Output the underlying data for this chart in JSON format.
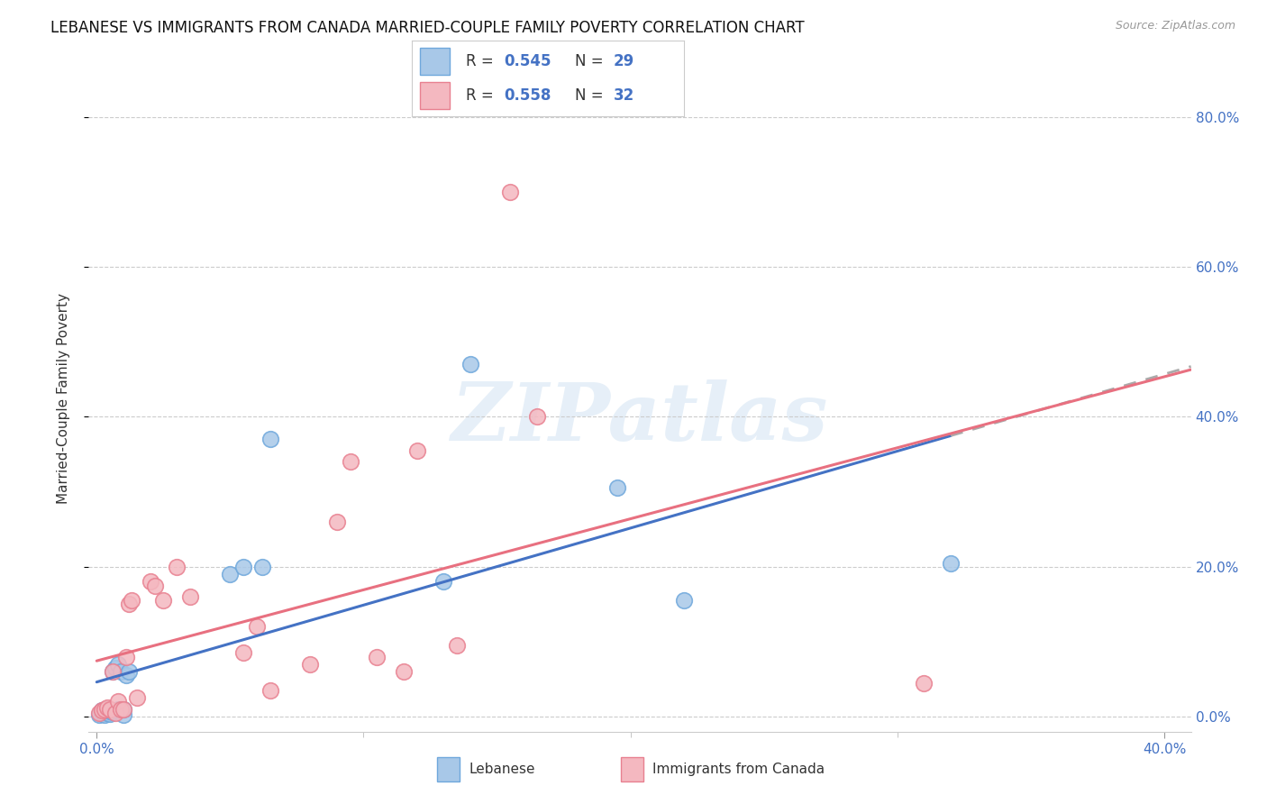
{
  "title": "LEBANESE VS IMMIGRANTS FROM CANADA MARRIED-COUPLE FAMILY POVERTY CORRELATION CHART",
  "source": "Source: ZipAtlas.com",
  "ylabel": "Married-Couple Family Poverty",
  "xlim": [
    -0.003,
    0.41
  ],
  "ylim": [
    -0.02,
    0.87
  ],
  "xtick_positions": [
    0.0,
    0.4
  ],
  "xtick_labels": [
    "0.0%",
    "40.0%"
  ],
  "yticks_right": [
    0.0,
    0.2,
    0.4,
    0.6,
    0.8
  ],
  "lebanese_x": [
    0.001,
    0.002,
    0.002,
    0.003,
    0.003,
    0.004,
    0.004,
    0.005,
    0.005,
    0.006,
    0.006,
    0.007,
    0.007,
    0.008,
    0.008,
    0.009,
    0.01,
    0.01,
    0.011,
    0.012,
    0.05,
    0.055,
    0.062,
    0.065,
    0.13,
    0.14,
    0.195,
    0.22,
    0.32
  ],
  "lebanese_y": [
    0.003,
    0.005,
    0.008,
    0.003,
    0.01,
    0.005,
    0.008,
    0.004,
    0.007,
    0.006,
    0.06,
    0.008,
    0.065,
    0.01,
    0.07,
    0.06,
    0.003,
    0.01,
    0.055,
    0.06,
    0.19,
    0.2,
    0.2,
    0.37,
    0.18,
    0.47,
    0.305,
    0.155,
    0.205
  ],
  "canada_x": [
    0.001,
    0.002,
    0.003,
    0.004,
    0.005,
    0.006,
    0.007,
    0.008,
    0.009,
    0.01,
    0.011,
    0.012,
    0.013,
    0.015,
    0.02,
    0.022,
    0.025,
    0.03,
    0.035,
    0.055,
    0.06,
    0.065,
    0.08,
    0.09,
    0.095,
    0.105,
    0.115,
    0.12,
    0.135,
    0.155,
    0.165,
    0.31
  ],
  "canada_y": [
    0.005,
    0.008,
    0.01,
    0.012,
    0.01,
    0.06,
    0.005,
    0.02,
    0.01,
    0.01,
    0.08,
    0.15,
    0.155,
    0.025,
    0.18,
    0.175,
    0.155,
    0.2,
    0.16,
    0.085,
    0.12,
    0.035,
    0.07,
    0.26,
    0.34,
    0.08,
    0.06,
    0.355,
    0.095,
    0.7,
    0.4,
    0.045
  ],
  "lebanese_face_color": "#a8c8e8",
  "canada_face_color": "#f4b8c0",
  "lebanese_edge_color": "#6fa8dc",
  "canada_edge_color": "#e88090",
  "lebanese_line_color": "#4472c4",
  "canada_line_color": "#e87080",
  "dash_line_color": "#aaaaaa",
  "R_lebanese": "0.545",
  "N_lebanese": "29",
  "R_canada": "0.558",
  "N_canada": "32",
  "watermark_text": "ZIPatlas",
  "background_color": "#ffffff",
  "grid_color": "#cccccc",
  "tick_color": "#4472c4",
  "title_fontsize": 12,
  "tick_fontsize": 11,
  "legend_text_color": "#4472c4"
}
